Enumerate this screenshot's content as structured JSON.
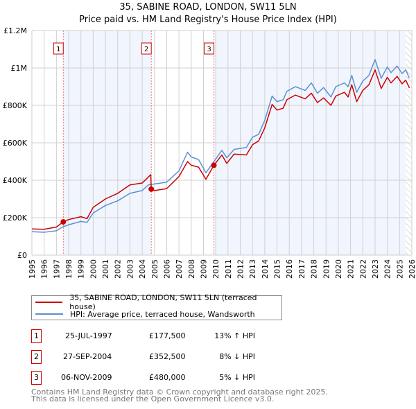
{
  "title": "35, SABINE ROAD, LONDON, SW11 5LN",
  "subtitle": "Price paid vs. HM Land Registry's House Price Index (HPI)",
  "chart_data": {
    "type": "line",
    "title": "35, SABINE ROAD, LONDON, SW11 5LN — Price paid vs. HM Land Registry's House Price Index (HPI)",
    "xlim": [
      1995,
      2026
    ],
    "ylim": [
      0,
      1200000
    ],
    "xticks": [
      "1995",
      "1996",
      "1997",
      "1998",
      "1999",
      "2000",
      "2001",
      "2002",
      "2003",
      "2004",
      "2005",
      "2006",
      "2007",
      "2008",
      "2009",
      "2010",
      "2011",
      "2012",
      "2013",
      "2014",
      "2015",
      "2016",
      "2017",
      "2018",
      "2019",
      "2020",
      "2021",
      "2022",
      "2023",
      "2024",
      "2025",
      "2026"
    ],
    "yticks": [
      {
        "v": 0,
        "l": "£0"
      },
      {
        "v": 200000,
        "l": "£200K"
      },
      {
        "v": 400000,
        "l": "£400K"
      },
      {
        "v": 600000,
        "l": "£600K"
      },
      {
        "v": 800000,
        "l": "£800K"
      },
      {
        "v": 1000000,
        "l": "£1M"
      },
      {
        "v": 1200000,
        "l": "£1.2M"
      }
    ],
    "grid": true,
    "series": [
      {
        "name": "35, SABINE ROAD, LONDON, SW11 5LN (terraced house)",
        "color": "#cc0000",
        "x": [
          1995,
          1996,
          1997,
          1997.56,
          1998,
          1999,
          1999.5,
          2000,
          2001,
          2002,
          2003,
          2004,
          2004.7,
          2004.74,
          2005,
          2006,
          2007,
          2007.7,
          2008,
          2008.6,
          2009.2,
          2009.85,
          2010.5,
          2010.9,
          2011.5,
          2012.5,
          2013,
          2013.5,
          2014,
          2014.6,
          2015,
          2015.5,
          2015.8,
          2016.5,
          2017.3,
          2017.8,
          2018.3,
          2018.8,
          2019.4,
          2019.8,
          2020.5,
          2020.8,
          2021.1,
          2021.5,
          2022,
          2022.5,
          2023,
          2023.5,
          2024,
          2024.3,
          2024.8,
          2025.2,
          2025.5,
          2025.8
        ],
        "y": [
          140000,
          138000,
          150000,
          177500,
          190000,
          205000,
          195000,
          255000,
          300000,
          330000,
          375000,
          385000,
          430000,
          352500,
          345000,
          355000,
          420000,
          500000,
          480000,
          470000,
          405000,
          480000,
          535000,
          490000,
          540000,
          535000,
          590000,
          610000,
          680000,
          805000,
          775000,
          785000,
          830000,
          855000,
          835000,
          865000,
          815000,
          840000,
          800000,
          850000,
          870000,
          845000,
          910000,
          820000,
          880000,
          910000,
          990000,
          890000,
          950000,
          920000,
          955000,
          915000,
          935000,
          893000
        ]
      },
      {
        "name": "HPI: Average price, terraced house, Wandsworth",
        "color": "#5b8fd4",
        "x": [
          1995,
          1996,
          1997,
          1997.5,
          1998,
          1999,
          1999.5,
          2000,
          2001,
          2002,
          2003,
          2004,
          2004.5,
          2005,
          2006,
          2007,
          2007.7,
          2008,
          2008.6,
          2009.2,
          2009.8,
          2010.5,
          2010.9,
          2011.5,
          2012.5,
          2013,
          2013.5,
          2014,
          2014.6,
          2015,
          2015.5,
          2015.8,
          2016.5,
          2017.3,
          2017.8,
          2018.3,
          2018.8,
          2019.4,
          2019.8,
          2020.5,
          2020.8,
          2021.1,
          2021.5,
          2022,
          2022.5,
          2023,
          2023.5,
          2024,
          2024.3,
          2024.8,
          2025.2,
          2025.5,
          2025.8
        ],
        "y": [
          125000,
          122000,
          130000,
          150000,
          162000,
          180000,
          175000,
          225000,
          265000,
          290000,
          330000,
          345000,
          375000,
          380000,
          390000,
          450000,
          550000,
          525000,
          510000,
          440000,
          495000,
          560000,
          520000,
          565000,
          575000,
          630000,
          645000,
          720000,
          850000,
          820000,
          830000,
          875000,
          900000,
          880000,
          920000,
          865000,
          895000,
          845000,
          900000,
          920000,
          900000,
          960000,
          870000,
          930000,
          960000,
          1045000,
          945000,
          1005000,
          975000,
          1010000,
          970000,
          990000,
          945000
        ]
      }
    ],
    "sales": [
      {
        "id": "1",
        "x": 1997.56,
        "y": 177500
      },
      {
        "id": "2",
        "x": 2004.74,
        "y": 352500
      },
      {
        "id": "3",
        "x": 2009.85,
        "y": 480000
      }
    ],
    "shaded_ranges": [
      [
        1997.56,
        2004.74
      ],
      [
        2009.85,
        2025.5
      ]
    ],
    "hatched_from": 2025.5
  },
  "legend": [
    {
      "label": "35, SABINE ROAD, LONDON, SW11 5LN (terraced house)",
      "color": "#cc0000"
    },
    {
      "label": "HPI: Average price, terraced house, Wandsworth",
      "color": "#5b8fd4"
    }
  ],
  "transactions": [
    {
      "num": "1",
      "date": "25-JUL-1997",
      "price": "£177,500",
      "hpi": "13% ↑ HPI"
    },
    {
      "num": "2",
      "date": "27-SEP-2004",
      "price": "£352,500",
      "hpi": "8% ↓ HPI"
    },
    {
      "num": "3",
      "date": "06-NOV-2009",
      "price": "£480,000",
      "hpi": "5% ↓ HPI"
    }
  ],
  "footer": [
    "Contains HM Land Registry data © Crown copyright and database right 2025.",
    "This data is licensed under the Open Government Licence v3.0."
  ]
}
